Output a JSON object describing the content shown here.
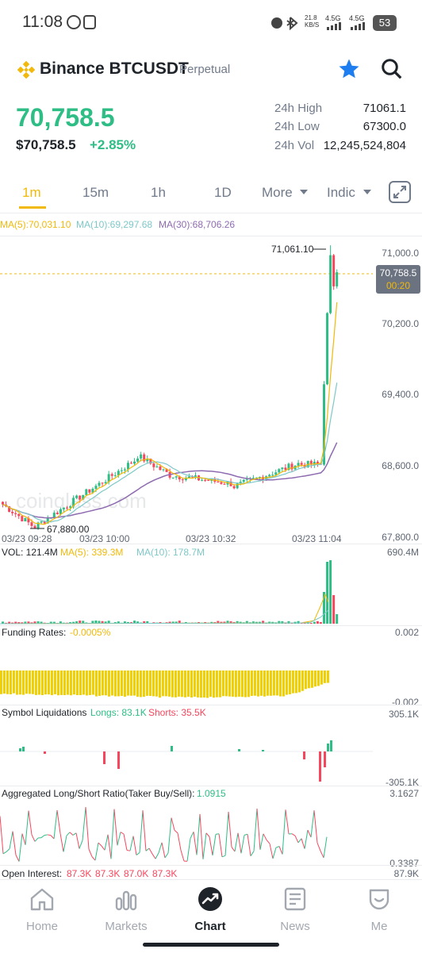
{
  "status_bar": {
    "time": "11:08",
    "speed": "21.8 KB/S",
    "net1": "4.5G",
    "net2": "4.5G",
    "battery": "53"
  },
  "header": {
    "pair": "Binance BTCUSDT",
    "contract": "Perpetual"
  },
  "ticker": {
    "last": "70,758.5",
    "usd": "$70,758.5",
    "change": "+2.85%",
    "stats": [
      {
        "label": "24h High",
        "value": "71061.1"
      },
      {
        "label": "24h Low",
        "value": "67300.0"
      },
      {
        "label": "24h Vol",
        "value": "12,245,524,804"
      }
    ]
  },
  "intervals": {
    "items": [
      "1m",
      "15m",
      "1h",
      "1D"
    ],
    "more": "More",
    "indic": "Indic",
    "active": "1m"
  },
  "chart": {
    "ma5": "MA(5):70,031.10",
    "ma10": "MA(10):69,297.68",
    "ma30": "MA(30):68,706.26",
    "y_ticks": [
      "71,000.0",
      "70,200.0",
      "69,400.0",
      "68,600.0",
      "67,800.0"
    ],
    "x_ticks": [
      "03/23 09:28",
      "03/23 10:00",
      "03/23 10:32",
      "03/23 11:04"
    ],
    "high_label": "71,061.10",
    "low_label": "67,880.00",
    "current_price": "70,758.5",
    "countdown": "00:20",
    "watermark": "coinglass.com",
    "colors": {
      "up": "#2ebd85",
      "down": "#f6465d",
      "ma5": "#f0b90b",
      "ma10": "#7ec8c8",
      "ma30": "#8e6bb0"
    }
  },
  "volume": {
    "vol": "VOL: 121.4M",
    "ma5": "MA(5): 339.3M",
    "ma10": "MA(10): 178.7M",
    "max": "690.4M"
  },
  "funding": {
    "label": "Funding Rates:",
    "value": "-0.0005%",
    "top": "0.002",
    "bottom": "-0.002"
  },
  "liquidations": {
    "label": "Symbol Liquidations",
    "longs": "Longs: 83.1K",
    "shorts": "Shorts: 35.5K",
    "top": "305.1K",
    "bottom": "-305.1K"
  },
  "ls_ratio": {
    "label": "Aggregated Long/Short Ratio(Taker Buy/Sell):",
    "value": "1.0915",
    "top": "3.1627",
    "bottom": "0.3387"
  },
  "open_interest": {
    "label": "Open Interest:",
    "values": [
      "87.3K",
      "87.3K",
      "87.0K",
      "87.3K"
    ],
    "top": "87.9K"
  },
  "nav": [
    {
      "label": "Home",
      "icon": "home-icon"
    },
    {
      "label": "Markets",
      "icon": "markets-icon"
    },
    {
      "label": "Chart",
      "icon": "chart-icon"
    },
    {
      "label": "News",
      "icon": "news-icon"
    },
    {
      "label": "Me",
      "icon": "me-icon"
    }
  ]
}
